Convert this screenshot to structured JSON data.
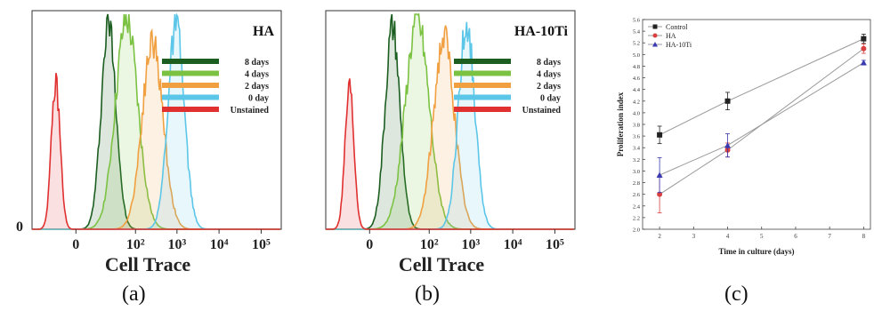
{
  "panel_labels": [
    "(a)",
    "(b)",
    "(c)"
  ],
  "chart_data": [
    {
      "type": "area",
      "panel": "(a)",
      "title": "HA",
      "xlabel": "Cell Trace",
      "ylabel": "",
      "x_scale": "biexponential",
      "x_ticks": [
        "0",
        "10²",
        "10³",
        "10⁴",
        "10⁵"
      ],
      "y_ticks": [
        "0"
      ],
      "legend_position": "middle-right",
      "series": [
        {
          "name": "8 days",
          "color": "#1b5e20",
          "peak_x": 20,
          "peak_height": 0.97,
          "width": 0.5
        },
        {
          "name": "4 days",
          "color": "#7cc242",
          "peak_x": 60,
          "peak_height": 0.98,
          "width": 0.75
        },
        {
          "name": "2 days",
          "color": "#f0a040",
          "peak_x": 260,
          "peak_height": 0.88,
          "width": 0.7
        },
        {
          "name": "0 day",
          "color": "#5bc6e8",
          "peak_x": 950,
          "peak_height": 0.95,
          "width": 0.55
        },
        {
          "name": "Unstained",
          "color": "#e03030",
          "peak_x": -8,
          "peak_height": 0.68,
          "width": 0.3
        }
      ]
    },
    {
      "type": "area",
      "panel": "(b)",
      "title": "HA-10Ti",
      "xlabel": "Cell Trace",
      "ylabel": "",
      "x_scale": "biexponential",
      "x_ticks": [
        "0",
        "10²",
        "10³",
        "10⁴",
        "10⁵"
      ],
      "y_ticks": [],
      "legend_position": "middle-right",
      "series": [
        {
          "name": "8 days",
          "color": "#1b5e20",
          "peak_x": 10,
          "peak_height": 0.95,
          "width": 0.5
        },
        {
          "name": "4 days",
          "color": "#7cc242",
          "peak_x": 50,
          "peak_height": 0.98,
          "width": 0.8
        },
        {
          "name": "2 days",
          "color": "#f0a040",
          "peak_x": 230,
          "peak_height": 0.9,
          "width": 0.7
        },
        {
          "name": "0 day",
          "color": "#5bc6e8",
          "peak_x": 800,
          "peak_height": 0.96,
          "width": 0.55
        },
        {
          "name": "Unstained",
          "color": "#e03030",
          "peak_x": -8,
          "peak_height": 0.68,
          "width": 0.3
        }
      ]
    },
    {
      "type": "line",
      "panel": "(c)",
      "title": "",
      "xlabel": "Time in culture (days)",
      "ylabel": "Proliferation index",
      "xlim": [
        1.5,
        8.2
      ],
      "ylim": [
        2.0,
        5.6
      ],
      "x_ticks": [
        2,
        3,
        4,
        5,
        6,
        7,
        8
      ],
      "y_ticks": [
        "2.0",
        "2.2",
        "2.4",
        "2.6",
        "2.8",
        "3.0",
        "3.2",
        "3.4",
        "3.6",
        "3.8",
        "4.0",
        "4.2",
        "4.4",
        "4.6",
        "4.8",
        "5.0",
        "5.2",
        "5.4",
        "5.6"
      ],
      "legend_position": "top-left",
      "grid": false,
      "series": [
        {
          "name": "Control",
          "color": "#222222",
          "marker": "square",
          "x": [
            2,
            4,
            8
          ],
          "y": [
            3.62,
            4.2,
            5.27
          ],
          "err": [
            0.15,
            0.15,
            0.08
          ]
        },
        {
          "name": "HA",
          "color": "#d94040",
          "marker": "circle",
          "x": [
            2,
            4,
            8
          ],
          "y": [
            2.6,
            3.36,
            5.1
          ],
          "err": [
            0.32,
            0.12,
            0.08
          ]
        },
        {
          "name": "HA-10Ti",
          "color": "#3a3ab0",
          "marker": "triangle",
          "x": [
            2,
            4,
            8
          ],
          "y": [
            2.93,
            3.44,
            4.86
          ],
          "err": [
            0.3,
            0.2,
            0.04
          ]
        }
      ]
    }
  ]
}
